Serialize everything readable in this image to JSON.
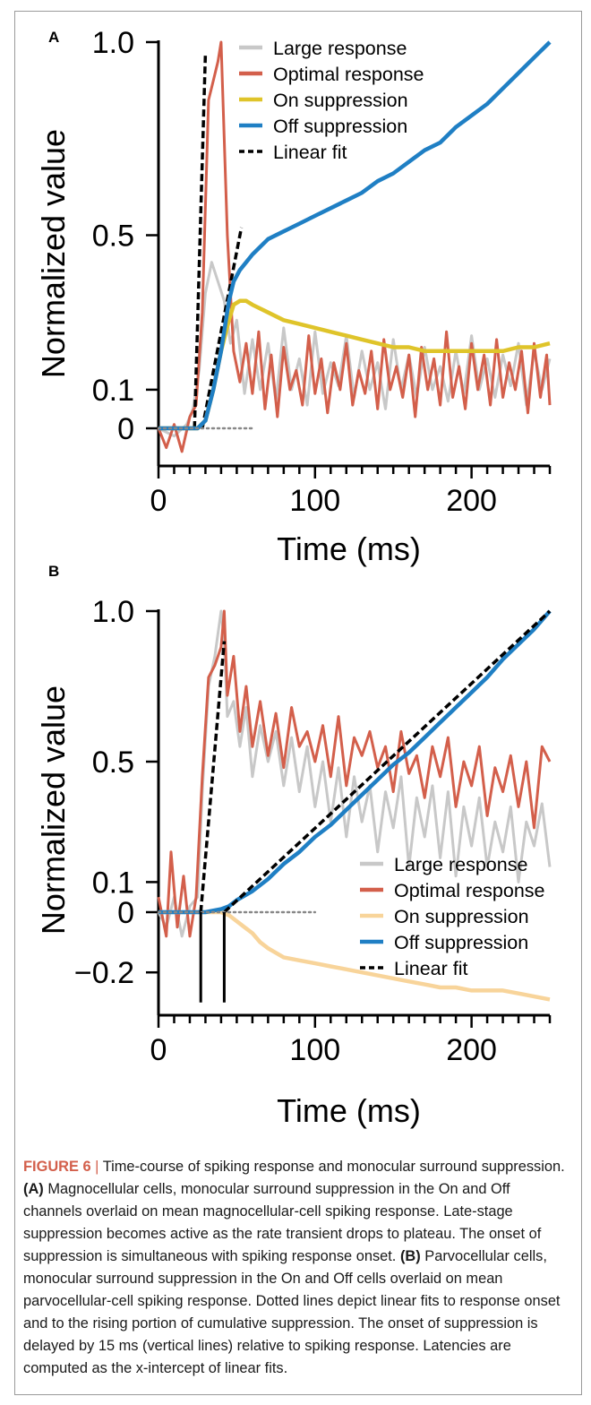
{
  "chart_data": [
    {
      "panel_label": "A",
      "type": "line",
      "xlabel": "Time (ms)",
      "ylabel": "Normalized value",
      "xlim": [
        0,
        250
      ],
      "ylim": [
        -0.1,
        1.0
      ],
      "x_ticks": [
        0,
        100,
        200
      ],
      "x_tick_labels": [
        "0",
        "100",
        "200"
      ],
      "y_ticks": [
        0,
        0.1,
        0.5,
        1.0
      ],
      "y_tick_labels": [
        "0",
        "0.1",
        "0.5",
        "1.0"
      ],
      "grid": false,
      "legend_position": "top-right",
      "series": [
        {
          "name": "Large response",
          "color": "#c8c8c8",
          "style": "solid",
          "x": [
            0,
            10,
            18,
            22,
            26,
            30,
            34,
            38,
            42,
            46,
            50,
            55,
            60,
            65,
            70,
            75,
            80,
            85,
            90,
            95,
            100,
            105,
            110,
            115,
            120,
            125,
            130,
            135,
            140,
            145,
            150,
            155,
            160,
            165,
            170,
            175,
            180,
            185,
            190,
            195,
            200,
            205,
            210,
            215,
            220,
            225,
            230,
            235,
            240,
            245,
            250
          ],
          "y": [
            0,
            -0.02,
            0.01,
            0.05,
            0.15,
            0.35,
            0.43,
            0.38,
            0.33,
            0.22,
            0.28,
            0.09,
            0.23,
            0.1,
            0.22,
            0.07,
            0.26,
            0.1,
            0.18,
            0.06,
            0.25,
            0.09,
            0.17,
            0.11,
            0.24,
            0.08,
            0.2,
            0.1,
            0.17,
            0.05,
            0.23,
            0.1,
            0.19,
            0.08,
            0.21,
            0.1,
            0.16,
            0.07,
            0.2,
            0.09,
            0.24,
            0.1,
            0.18,
            0.08,
            0.19,
            0.11,
            0.22,
            0.06,
            0.2,
            0.1,
            0.18
          ]
        },
        {
          "name": "Optimal response",
          "color": "#d35f4b",
          "style": "solid",
          "x": [
            0,
            5,
            10,
            15,
            20,
            24,
            28,
            32,
            35,
            38,
            40,
            42,
            44,
            46,
            48,
            52,
            56,
            60,
            64,
            68,
            72,
            76,
            80,
            84,
            88,
            92,
            96,
            100,
            104,
            108,
            112,
            116,
            120,
            124,
            128,
            132,
            136,
            140,
            144,
            148,
            152,
            156,
            160,
            164,
            168,
            172,
            176,
            180,
            184,
            188,
            192,
            196,
            200,
            204,
            208,
            212,
            216,
            220,
            224,
            228,
            232,
            236,
            240,
            244,
            248,
            250
          ],
          "y": [
            0,
            -0.05,
            0.01,
            -0.06,
            0.03,
            0.06,
            0.3,
            0.85,
            0.9,
            0.95,
            1.0,
            0.75,
            0.5,
            0.35,
            0.2,
            0.12,
            0.22,
            0.09,
            0.25,
            0.05,
            0.19,
            0.03,
            0.21,
            0.1,
            0.15,
            0.06,
            0.24,
            0.09,
            0.18,
            0.04,
            0.17,
            0.1,
            0.22,
            0.06,
            0.15,
            0.09,
            0.2,
            0.05,
            0.23,
            0.1,
            0.16,
            0.08,
            0.19,
            0.03,
            0.21,
            0.1,
            0.18,
            0.06,
            0.25,
            0.08,
            0.16,
            0.05,
            0.22,
            0.1,
            0.19,
            0.06,
            0.23,
            0.08,
            0.17,
            0.1,
            0.2,
            0.04,
            0.22,
            0.08,
            0.19,
            0.06
          ]
        },
        {
          "name": "On suppression",
          "color": "#dfc42a",
          "style": "solid",
          "x": [
            0,
            25,
            30,
            35,
            40,
            45,
            48,
            52,
            56,
            60,
            70,
            80,
            90,
            100,
            110,
            120,
            130,
            140,
            150,
            160,
            170,
            180,
            190,
            200,
            210,
            220,
            230,
            240,
            250
          ],
          "y": [
            0,
            0,
            0.02,
            0.1,
            0.2,
            0.28,
            0.32,
            0.33,
            0.33,
            0.32,
            0.3,
            0.28,
            0.27,
            0.26,
            0.25,
            0.24,
            0.23,
            0.22,
            0.21,
            0.21,
            0.2,
            0.2,
            0.2,
            0.2,
            0.2,
            0.2,
            0.21,
            0.21,
            0.22
          ]
        },
        {
          "name": "Off suppression",
          "color": "#1f7fc4",
          "style": "solid",
          "x": [
            0,
            25,
            30,
            35,
            40,
            45,
            48,
            52,
            56,
            60,
            70,
            80,
            90,
            100,
            110,
            120,
            130,
            140,
            150,
            160,
            170,
            180,
            190,
            200,
            210,
            220,
            230,
            240,
            250
          ],
          "y": [
            0,
            0,
            0.02,
            0.1,
            0.2,
            0.33,
            0.38,
            0.41,
            0.43,
            0.45,
            0.49,
            0.51,
            0.53,
            0.55,
            0.57,
            0.59,
            0.61,
            0.64,
            0.66,
            0.69,
            0.72,
            0.74,
            0.78,
            0.81,
            0.84,
            0.88,
            0.92,
            0.96,
            1.0
          ]
        },
        {
          "name": "Linear fit",
          "color": "#000000",
          "style": "dashed",
          "x": [
            23,
            30
          ],
          "y": [
            0,
            0.97
          ]
        },
        {
          "name": "Linear fit",
          "color": "#000000",
          "style": "dashed",
          "x": [
            28,
            53
          ],
          "y": [
            0,
            0.52
          ]
        },
        {
          "name": "baseline",
          "color": "#888888",
          "style": "dotted",
          "x": [
            0,
            60
          ],
          "y": [
            0,
            0
          ]
        }
      ]
    },
    {
      "panel_label": "B",
      "type": "line",
      "xlabel": "Time (ms)",
      "ylabel": "Normalized value",
      "xlim": [
        0,
        250
      ],
      "ylim": [
        -0.3,
        1.0
      ],
      "x_ticks": [
        0,
        100,
        200
      ],
      "x_tick_labels": [
        "0",
        "100",
        "200"
      ],
      "y_ticks": [
        -0.2,
        0,
        0.1,
        0.5,
        1.0
      ],
      "y_tick_labels": [
        "−0.2",
        "0",
        "0.1",
        "0.5",
        "1.0"
      ],
      "grid": false,
      "legend_position": "bottom-right",
      "series": [
        {
          "name": "Large response",
          "color": "#c8c8c8",
          "style": "solid",
          "x": [
            0,
            5,
            10,
            15,
            20,
            25,
            28,
            32,
            36,
            40,
            42,
            44,
            48,
            52,
            56,
            60,
            65,
            70,
            75,
            80,
            85,
            90,
            95,
            100,
            105,
            110,
            115,
            120,
            125,
            130,
            135,
            140,
            145,
            150,
            155,
            160,
            165,
            170,
            175,
            180,
            185,
            190,
            195,
            200,
            205,
            210,
            215,
            220,
            225,
            230,
            235,
            240,
            245,
            250
          ],
          "y": [
            0,
            -0.05,
            0.05,
            -0.08,
            0.02,
            0.05,
            0.4,
            0.75,
            0.85,
            1.0,
            0.9,
            0.65,
            0.7,
            0.55,
            0.68,
            0.45,
            0.62,
            0.5,
            0.6,
            0.42,
            0.58,
            0.4,
            0.55,
            0.35,
            0.5,
            0.3,
            0.48,
            0.25,
            0.45,
            0.3,
            0.42,
            0.2,
            0.4,
            0.28,
            0.45,
            0.15,
            0.38,
            0.25,
            0.42,
            0.18,
            0.4,
            0.12,
            0.35,
            0.22,
            0.38,
            0.15,
            0.3,
            0.2,
            0.35,
            0.1,
            0.3,
            0.22,
            0.36,
            0.15
          ]
        },
        {
          "name": "Optimal response",
          "color": "#d35f4b",
          "style": "solid",
          "x": [
            0,
            5,
            8,
            12,
            16,
            20,
            24,
            28,
            32,
            36,
            40,
            42,
            44,
            48,
            52,
            56,
            60,
            65,
            70,
            75,
            80,
            85,
            90,
            95,
            100,
            105,
            110,
            115,
            120,
            125,
            130,
            135,
            140,
            145,
            150,
            155,
            160,
            165,
            170,
            175,
            180,
            185,
            190,
            195,
            200,
            205,
            210,
            215,
            220,
            225,
            230,
            235,
            240,
            245,
            250
          ],
          "y": [
            0.05,
            -0.08,
            0.2,
            -0.05,
            0.12,
            -0.08,
            0.05,
            0.45,
            0.78,
            0.82,
            0.88,
            1.0,
            0.72,
            0.85,
            0.6,
            0.75,
            0.55,
            0.7,
            0.52,
            0.66,
            0.48,
            0.68,
            0.55,
            0.6,
            0.5,
            0.62,
            0.45,
            0.65,
            0.42,
            0.58,
            0.52,
            0.6,
            0.48,
            0.55,
            0.4,
            0.6,
            0.46,
            0.52,
            0.38,
            0.55,
            0.45,
            0.58,
            0.35,
            0.5,
            0.42,
            0.55,
            0.32,
            0.48,
            0.4,
            0.52,
            0.35,
            0.5,
            0.28,
            0.55,
            0.5
          ]
        },
        {
          "name": "On suppression",
          "color": "#f8d49a",
          "style": "solid",
          "x": [
            0,
            40,
            45,
            50,
            55,
            60,
            65,
            70,
            80,
            90,
            100,
            110,
            120,
            130,
            140,
            150,
            160,
            170,
            180,
            190,
            200,
            210,
            220,
            230,
            240,
            250
          ],
          "y": [
            0,
            0,
            -0.01,
            -0.03,
            -0.05,
            -0.07,
            -0.1,
            -0.12,
            -0.15,
            -0.16,
            -0.17,
            -0.18,
            -0.19,
            -0.2,
            -0.21,
            -0.22,
            -0.23,
            -0.24,
            -0.25,
            -0.25,
            -0.26,
            -0.26,
            -0.26,
            -0.27,
            -0.28,
            -0.29
          ]
        },
        {
          "name": "Off suppression",
          "color": "#1f7fc4",
          "style": "solid",
          "x": [
            0,
            20,
            30,
            40,
            45,
            50,
            60,
            70,
            80,
            90,
            100,
            110,
            120,
            130,
            140,
            150,
            160,
            170,
            180,
            190,
            200,
            210,
            220,
            230,
            240,
            250
          ],
          "y": [
            0,
            0,
            0,
            0.01,
            0.02,
            0.04,
            0.07,
            0.11,
            0.16,
            0.2,
            0.25,
            0.29,
            0.34,
            0.39,
            0.44,
            0.49,
            0.53,
            0.58,
            0.63,
            0.68,
            0.73,
            0.78,
            0.84,
            0.89,
            0.94,
            1.0
          ]
        },
        {
          "name": "Linear fit",
          "color": "#000000",
          "style": "dashed",
          "x": [
            27,
            42
          ],
          "y": [
            0,
            0.9
          ]
        },
        {
          "name": "Linear fit",
          "color": "#000000",
          "style": "dashed",
          "x": [
            42,
            250
          ],
          "y": [
            0,
            1.0
          ]
        },
        {
          "name": "baseline",
          "color": "#888888",
          "style": "dotted",
          "x": [
            0,
            100
          ],
          "y": [
            0,
            0
          ]
        },
        {
          "name": "onset marker",
          "color": "#000000",
          "style": "solid",
          "x": [
            27,
            27
          ],
          "y": [
            0,
            -0.3
          ]
        },
        {
          "name": "onset marker",
          "color": "#000000",
          "style": "solid",
          "x": [
            42,
            42
          ],
          "y": [
            0,
            -0.3
          ]
        }
      ]
    }
  ],
  "caption": {
    "figure_label": "FIGURE 6",
    "separator": "|",
    "intro": "Time-course of spiking response and monocular surround suppression.",
    "a_label": "(A)",
    "a_text": "Magnocellular cells, monocular surround suppression in the On and Off channels overlaid on mean magnocellular-cell spiking response. Late-stage suppression becomes active as the rate transient drops to plateau. The onset of suppression is simultaneous with spiking response onset.",
    "b_label": "(B)",
    "b_text": "Parvocellular cells, monocular surround suppression in the On and Off cells overlaid on mean parvocellular-cell spiking response. Dotted lines depict linear fits to response onset and to the rising portion of cumulative suppression. The onset of suppression is delayed by 15 ms (vertical lines) relative to spiking response. Latencies are computed as the x-intercept of linear fits."
  }
}
